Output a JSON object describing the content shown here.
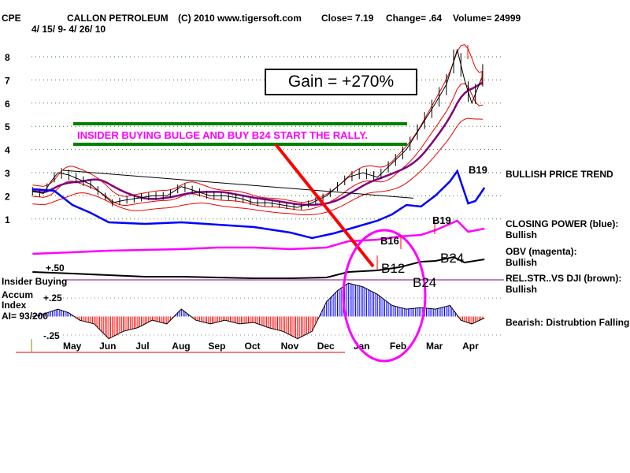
{
  "header": {
    "ticker": "CPE",
    "company": "CALLON PETROLEUM",
    "copyright": "(C) 2010 www.tigersoft.com",
    "close": "Close=  7.19",
    "change": "Change= .64",
    "volume": "Volume= 24999",
    "date_range": "4/ 15/ 9- 4/ 26/ 10"
  },
  "annotations": {
    "gain": "Gain = +270%",
    "insider": "INSIDER BUYING BULGE AND BUY B24 START THE RALLY.",
    "b19a": "B19",
    "b19b": "B19",
    "b12": "B12",
    "b24a": "B24",
    "b24b": "B24",
    "b16": "B16"
  },
  "left_labels": {
    "insider_buying": "Insider Buying",
    "accum": "Accum",
    "index": "Index",
    "ai": "AI= 93/200",
    "p50": "+.50",
    "p25": "+.25",
    "m25": "-.25"
  },
  "right_labels": {
    "price_trend": "BULLISH PRICE TREND",
    "cp": "CLOSING POWER (blue):",
    "cp_state": "Bullish",
    "obv": "OBV (magenta):",
    "obv_state": "Bullish",
    "rs": "REL.STR..VS DJI (brown):",
    "rs_state": "Bullish",
    "ai": "Bearish: Distrubtion Falling."
  },
  "chart_data": {
    "type": "line",
    "title": "CALLON PETROLEUM",
    "x_ticks": [
      "May",
      "Jun",
      "Jul",
      "Aug",
      "Sep",
      "Oct",
      "Nov",
      "Dec",
      "Jan",
      "Feb",
      "Mar",
      "Apr"
    ],
    "y_ticks": [
      1,
      2,
      3,
      4,
      5,
      6,
      7,
      8
    ],
    "ylim": [
      1,
      8
    ],
    "price": [
      [
        -0.1,
        2.2
      ],
      [
        0.2,
        2.1
      ],
      [
        0.4,
        2.6
      ],
      [
        0.6,
        3.0
      ],
      [
        0.9,
        2.9
      ],
      [
        1.2,
        2.7
      ],
      [
        1.5,
        2.5
      ],
      [
        1.8,
        2.1
      ],
      [
        2.1,
        1.7
      ],
      [
        2.4,
        1.8
      ],
      [
        2.8,
        1.9
      ],
      [
        3.2,
        2.0
      ],
      [
        3.6,
        2.0
      ],
      [
        4.0,
        2.4
      ],
      [
        4.4,
        2.2
      ],
      [
        4.8,
        2.0
      ],
      [
        5.2,
        2.0
      ],
      [
        5.6,
        1.9
      ],
      [
        6.0,
        1.7
      ],
      [
        6.4,
        1.7
      ],
      [
        6.8,
        1.6
      ],
      [
        7.2,
        1.5
      ],
      [
        7.6,
        1.7
      ],
      [
        8.0,
        2.0
      ],
      [
        8.3,
        2.4
      ],
      [
        8.6,
        2.8
      ],
      [
        9.0,
        3.0
      ],
      [
        9.4,
        2.8
      ],
      [
        9.8,
        3.4
      ],
      [
        10.2,
        4.0
      ],
      [
        10.6,
        5.0
      ],
      [
        11.0,
        6.0
      ],
      [
        11.3,
        6.8
      ],
      [
        11.6,
        8.3
      ],
      [
        11.8,
        7.0
      ],
      [
        12.0,
        6.0
      ],
      [
        12.3,
        7.2
      ]
    ],
    "closing_power": [
      [
        -0.1,
        70
      ],
      [
        0.5,
        68
      ],
      [
        1.0,
        50
      ],
      [
        1.5,
        40
      ],
      [
        2.0,
        28
      ],
      [
        3.0,
        26
      ],
      [
        4.0,
        28
      ],
      [
        5.0,
        25
      ],
      [
        6.0,
        22
      ],
      [
        7.0,
        15
      ],
      [
        7.6,
        8
      ],
      [
        8.2,
        14
      ],
      [
        8.8,
        22
      ],
      [
        9.4,
        30
      ],
      [
        9.8,
        38
      ],
      [
        10.2,
        50
      ],
      [
        10.6,
        48
      ],
      [
        11.0,
        62
      ],
      [
        11.4,
        80
      ],
      [
        11.6,
        93
      ],
      [
        11.9,
        52
      ],
      [
        12.1,
        55
      ],
      [
        12.35,
        72
      ]
    ],
    "obv": [
      [
        -0.1,
        -10
      ],
      [
        1.0,
        -8
      ],
      [
        2.0,
        -6
      ],
      [
        3.0,
        -5
      ],
      [
        4.0,
        -4
      ],
      [
        5.0,
        -2
      ],
      [
        6.0,
        -2
      ],
      [
        7.0,
        -4
      ],
      [
        8.0,
        -2
      ],
      [
        8.6,
        6
      ],
      [
        9.4,
        8
      ],
      [
        10.0,
        12
      ],
      [
        10.6,
        14
      ],
      [
        11.0,
        20
      ],
      [
        11.4,
        28
      ],
      [
        11.6,
        32
      ],
      [
        11.9,
        18
      ],
      [
        12.35,
        22
      ]
    ],
    "rel_strength": [
      [
        -0.1,
        -18
      ],
      [
        1.0,
        -20
      ],
      [
        2.0,
        -22
      ],
      [
        3.0,
        -24
      ],
      [
        4.0,
        -24
      ],
      [
        5.0,
        -25
      ],
      [
        6.0,
        -26
      ],
      [
        7.0,
        -26
      ],
      [
        8.0,
        -25
      ],
      [
        8.6,
        -18
      ],
      [
        9.4,
        -16
      ],
      [
        10.0,
        -12
      ],
      [
        10.6,
        -5
      ],
      [
        11.0,
        -4
      ],
      [
        11.5,
        1
      ],
      [
        11.8,
        -6
      ],
      [
        12.35,
        -2
      ]
    ],
    "accum_index": [
      [
        -0.1,
        0.0
      ],
      [
        0.3,
        0.05
      ],
      [
        0.6,
        0.1
      ],
      [
        0.9,
        0.05
      ],
      [
        1.2,
        -0.05
      ],
      [
        1.6,
        -0.1
      ],
      [
        2.0,
        -0.3
      ],
      [
        2.4,
        -0.2
      ],
      [
        2.8,
        -0.15
      ],
      [
        3.2,
        -0.05
      ],
      [
        3.6,
        -0.1
      ],
      [
        4.0,
        0.1
      ],
      [
        4.4,
        -0.05
      ],
      [
        4.8,
        -0.1
      ],
      [
        5.2,
        -0.05
      ],
      [
        5.6,
        -0.1
      ],
      [
        6.0,
        -0.08
      ],
      [
        6.4,
        -0.15
      ],
      [
        6.8,
        -0.2
      ],
      [
        7.2,
        -0.3
      ],
      [
        7.6,
        -0.2
      ],
      [
        8.0,
        0.2
      ],
      [
        8.3,
        0.35
      ],
      [
        8.6,
        0.45
      ],
      [
        9.0,
        0.4
      ],
      [
        9.4,
        0.3
      ],
      [
        9.8,
        0.15
      ],
      [
        10.2,
        0.1
      ],
      [
        10.6,
        0.12
      ],
      [
        11.0,
        0.1
      ],
      [
        11.4,
        0.15
      ],
      [
        11.7,
        -0.05
      ],
      [
        12.0,
        -0.1
      ],
      [
        12.35,
        -0.02
      ]
    ]
  }
}
